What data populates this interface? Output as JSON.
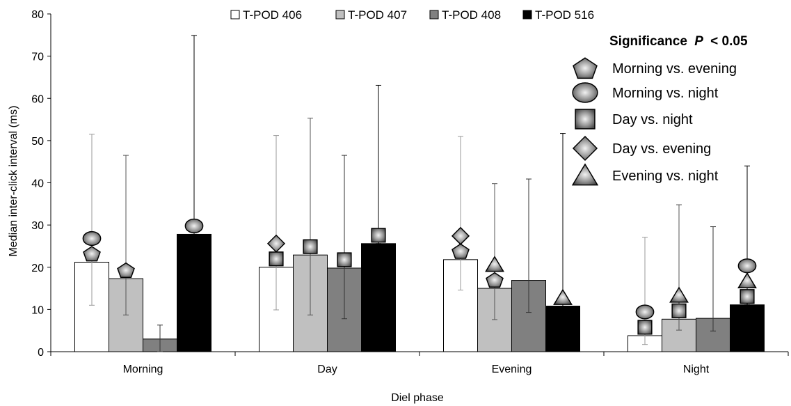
{
  "chart_data": {
    "type": "bar",
    "xlabel": "Diel phase",
    "ylabel": "Median inter-click interval (ms)",
    "ylim": [
      0,
      80
    ],
    "yticks": [
      0,
      10,
      20,
      30,
      40,
      50,
      60,
      70,
      80
    ],
    "categories": [
      "Morning",
      "Day",
      "Evening",
      "Night"
    ],
    "series": [
      {
        "name": "T-POD 406",
        "color": "#ffffff",
        "values": [
          21.2,
          20.0,
          21.8,
          3.8
        ],
        "err_low": [
          11.0,
          9.9,
          14.6,
          1.7
        ],
        "err_high": [
          51.5,
          51.2,
          51.0,
          27.1
        ],
        "err_color": "#999999"
      },
      {
        "name": "T-POD 407",
        "color": "#c0c0c0",
        "values": [
          17.3,
          22.9,
          15.0,
          7.7
        ],
        "err_low": [
          8.7,
          8.7,
          7.6,
          5.1
        ],
        "err_high": [
          46.5,
          55.3,
          39.8,
          34.8
        ],
        "err_color": "#555555"
      },
      {
        "name": "T-POD 408",
        "color": "#808080",
        "values": [
          3.0,
          19.8,
          16.9,
          7.9
        ],
        "err_low": [
          0.0,
          7.8,
          9.3,
          4.9
        ],
        "err_high": [
          6.3,
          46.5,
          40.9,
          29.6
        ],
        "err_color": "#333333"
      },
      {
        "name": "T-POD 516",
        "color": "#000000",
        "values": [
          27.8,
          25.6,
          10.8,
          11.1
        ],
        "err_low": [
          27.8,
          25.6,
          10.8,
          11.1
        ],
        "err_high": [
          74.9,
          63.1,
          51.7,
          44.0
        ],
        "err_color": "#000000"
      }
    ],
    "significance": {
      "title": "Significance",
      "title_p": "P",
      "title_rest": "< 0.05",
      "items": [
        {
          "shape": "pentagon",
          "label": "Morning vs. evening"
        },
        {
          "shape": "circle",
          "label": "Morning vs. night"
        },
        {
          "shape": "square",
          "label": "Day vs. night"
        },
        {
          "shape": "diamond",
          "label": "Day vs. evening"
        },
        {
          "shape": "triangle",
          "label": "Evening vs. night"
        }
      ]
    },
    "markers": [
      {
        "category": 0,
        "series": 0,
        "shapes": [
          "pentagon",
          "circle"
        ]
      },
      {
        "category": 0,
        "series": 1,
        "shapes": [
          "pentagon"
        ]
      },
      {
        "category": 0,
        "series": 3,
        "shapes": [
          "circle"
        ]
      },
      {
        "category": 1,
        "series": 0,
        "shapes": [
          "square",
          "diamond"
        ]
      },
      {
        "category": 1,
        "series": 1,
        "shapes": [
          "square"
        ]
      },
      {
        "category": 1,
        "series": 2,
        "shapes": [
          "square"
        ]
      },
      {
        "category": 1,
        "series": 3,
        "shapes": [
          "square"
        ]
      },
      {
        "category": 2,
        "series": 0,
        "shapes": [
          "pentagon",
          "diamond"
        ]
      },
      {
        "category": 2,
        "series": 1,
        "shapes": [
          "pentagon",
          "triangle"
        ]
      },
      {
        "category": 2,
        "series": 3,
        "shapes": [
          "triangle"
        ]
      },
      {
        "category": 3,
        "series": 0,
        "shapes": [
          "square",
          "circle"
        ]
      },
      {
        "category": 3,
        "series": 1,
        "shapes": [
          "square",
          "triangle"
        ]
      },
      {
        "category": 3,
        "series": 3,
        "shapes": [
          "square",
          "triangle",
          "circle"
        ]
      }
    ]
  }
}
